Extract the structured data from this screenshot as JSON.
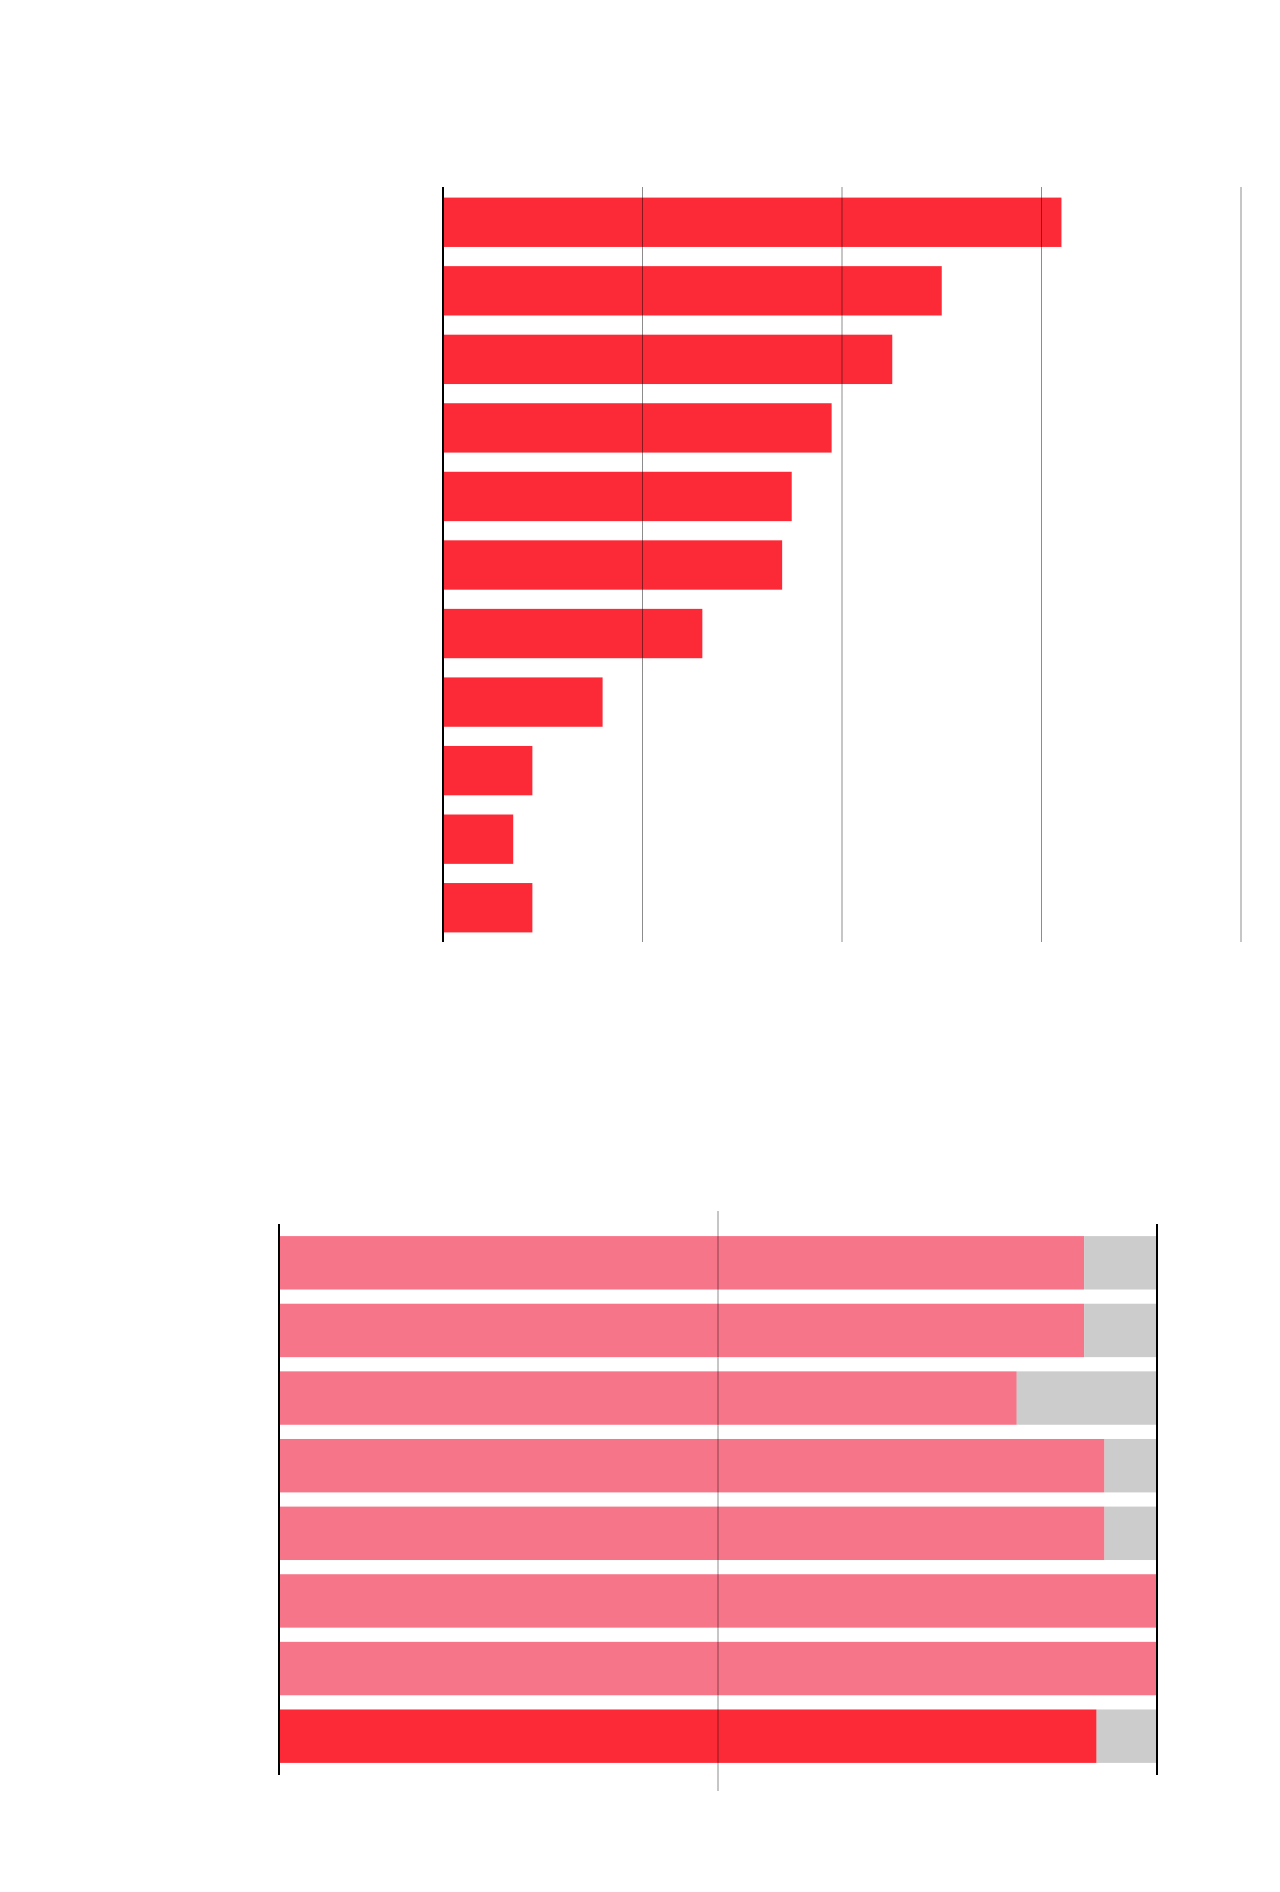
{
  "chart_data": [
    {
      "type": "bar",
      "orientation": "horizontal",
      "categories": [
        null,
        null,
        null,
        null,
        null,
        null,
        null,
        null,
        null,
        null,
        null
      ],
      "values": [
        77.5,
        62.5,
        56.3,
        48.7,
        43.7,
        42.5,
        32.5,
        20,
        11.2,
        8.8,
        11.2
      ],
      "color": "#fc2a36",
      "xlim": [
        0,
        100
      ],
      "xticks": [
        0,
        25,
        50,
        75,
        100
      ],
      "grid": true
    },
    {
      "type": "bar",
      "orientation": "horizontal",
      "stacked": true,
      "categories": [
        null,
        null,
        null,
        null,
        null,
        null,
        null,
        null
      ],
      "series": [
        {
          "color": "#f77589",
          "colors": [
            "#f77589",
            "#f77589",
            "#f77589",
            "#f77589",
            "#f77589",
            "#f77589",
            "#f77589",
            "#fc2a36"
          ],
          "values": [
            91.7,
            91.7,
            84.0,
            94.0,
            94.0,
            100,
            100,
            93.1
          ]
        },
        {
          "color": "#cccccc",
          "values": [
            8.3,
            8.3,
            16.0,
            6.0,
            6.0,
            0,
            0,
            6.9
          ]
        }
      ],
      "xlim": [
        0,
        100
      ],
      "xticks": [
        0,
        50,
        100
      ],
      "grid": true
    }
  ]
}
